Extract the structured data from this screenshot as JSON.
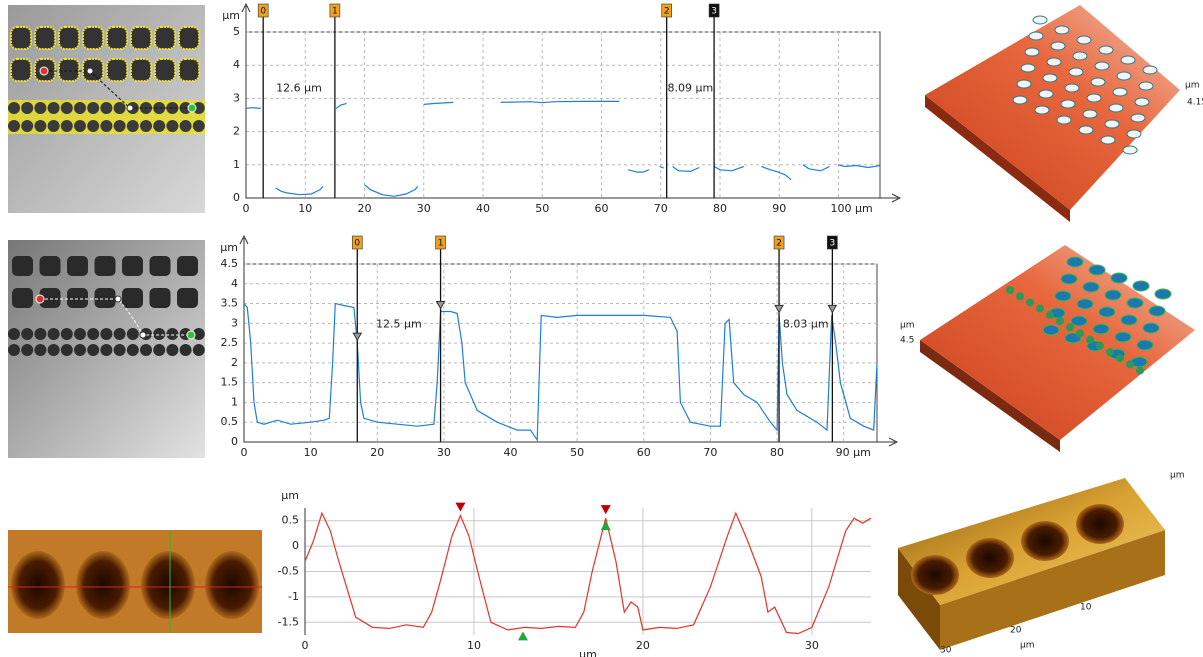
{
  "chart_data": [
    {
      "type": "line",
      "color": "#1f7fd6",
      "grid": "dashed",
      "y_label": "µm",
      "xlim": [
        0,
        107
      ],
      "xticks": [
        0,
        10,
        20,
        30,
        40,
        50,
        60,
        70,
        80,
        90,
        {
          "value": 100,
          "label": "100 µm"
        }
      ],
      "ylim": [
        0,
        5
      ],
      "yticks": [
        0,
        1,
        2,
        3,
        4,
        5
      ],
      "cursors": [
        {
          "label": "0",
          "x": 2.9,
          "color": "#f0a020"
        },
        {
          "label": "1",
          "x": 15,
          "color": "#f0a020"
        },
        {
          "label": "2",
          "x": 71,
          "color": "#f0a020"
        },
        {
          "label": "3",
          "x": 79,
          "color": "#111111"
        }
      ],
      "annotations": [
        "12.6 µm",
        "8.09 µm"
      ],
      "x": [
        0,
        1,
        2.5,
        3.5,
        5,
        6,
        7,
        9,
        11,
        12.5,
        13,
        14,
        15.2,
        16,
        17,
        18,
        20,
        21,
        23,
        25,
        27,
        28.5,
        29,
        29.5,
        30,
        32,
        35,
        38,
        43,
        48,
        50,
        52,
        57,
        63,
        64,
        64.5,
        66,
        67,
        68,
        69,
        69.8,
        70.5,
        71,
        72,
        73,
        75,
        76.5,
        77.5,
        79,
        80,
        82,
        84,
        85,
        87,
        88.5,
        89.5,
        91,
        92,
        93,
        94,
        95,
        97,
        98.5,
        99,
        100,
        101,
        103,
        105,
        107
      ],
      "values": [
        2.7,
        2.72,
        2.7,
        null,
        0.3,
        0.2,
        0.15,
        0.1,
        0.12,
        0.25,
        0.35,
        null,
        2.7,
        2.8,
        2.85,
        null,
        0.4,
        0.25,
        0.1,
        0.05,
        0.12,
        0.25,
        0.35,
        null,
        2.82,
        2.85,
        2.88,
        null,
        2.88,
        2.9,
        2.87,
        2.9,
        2.91,
        2.91,
        null,
        0.85,
        0.78,
        0.78,
        0.85,
        null,
        0.95,
        0.9,
        null,
        0.95,
        0.82,
        0.8,
        0.92,
        null,
        0.95,
        0.85,
        0.82,
        0.95,
        null,
        0.95,
        0.85,
        0.8,
        0.7,
        0.55,
        null,
        1.0,
        0.88,
        0.82,
        0.95,
        null,
        1.0,
        0.95,
        0.98,
        0.92,
        0.98
      ]
    },
    {
      "type": "line",
      "color": "#1f7fd6",
      "grid": "dashed",
      "y_label": "µm",
      "xlim": [
        0,
        95
      ],
      "xticks": [
        0,
        10,
        20,
        30,
        40,
        50,
        60,
        70,
        80,
        {
          "value": 90,
          "label": "90 µm"
        }
      ],
      "ylim": [
        0,
        4.5
      ],
      "yticks": [
        0,
        0.5,
        1,
        1.5,
        2,
        2.5,
        3,
        3.5,
        4,
        4.5
      ],
      "cursors": [
        {
          "label": "0",
          "x": 17,
          "color": "#f0a020"
        },
        {
          "label": "1",
          "x": 29.5,
          "color": "#f0a020"
        },
        {
          "label": "2",
          "x": 80.3,
          "color": "#f0a020"
        },
        {
          "label": "3",
          "x": 88.3,
          "color": "#111111"
        }
      ],
      "annotations": [
        "12.5 µm",
        "8.03 µm"
      ],
      "x": [
        0,
        0.5,
        1,
        1.5,
        2,
        3,
        5,
        7,
        10,
        12,
        12.8,
        13.3,
        13.7,
        15,
        16.5,
        17,
        17.5,
        18,
        20,
        23,
        26,
        28.5,
        29,
        29.5,
        31,
        32,
        32.7,
        33.2,
        35,
        38,
        41,
        43,
        44,
        44.6,
        47,
        50,
        55,
        60,
        64,
        65,
        65.5,
        67,
        70,
        71.5,
        72.2,
        72.8,
        73.5,
        75,
        77,
        79,
        80,
        80.3,
        80.8,
        81.5,
        83,
        86,
        87.5,
        88.2,
        88.8,
        89.5,
        91,
        93,
        94.5,
        95
      ],
      "values": [
        3.5,
        3.4,
        2.5,
        1.0,
        0.5,
        0.45,
        0.55,
        0.45,
        0.5,
        0.55,
        0.6,
        2.0,
        3.5,
        3.45,
        3.4,
        2.5,
        1.0,
        0.6,
        0.5,
        0.45,
        0.4,
        0.45,
        1.5,
        3.3,
        3.3,
        3.25,
        2.5,
        1.5,
        0.8,
        0.5,
        0.3,
        0.3,
        0.05,
        3.2,
        3.15,
        3.2,
        3.2,
        3.2,
        3.15,
        2.8,
        1.0,
        0.5,
        0.4,
        0.4,
        3.0,
        3.1,
        1.5,
        1.2,
        1.0,
        0.5,
        0.3,
        3.2,
        2.0,
        1.2,
        0.8,
        0.5,
        0.3,
        3.2,
        2.5,
        1.5,
        0.6,
        0.4,
        0.3,
        2.0
      ]
    },
    {
      "type": "line",
      "color": "#e8322a",
      "grid": "solid",
      "y_label": "µm",
      "x_label": "µm",
      "xlim": [
        0,
        33.5
      ],
      "xticks": [
        0,
        10,
        20,
        30
      ],
      "ylim": [
        -1.75,
        0.75
      ],
      "yticks": [
        -1.5,
        -1,
        -0.5,
        0,
        0.5
      ],
      "markers": [
        {
          "x": 9.2,
          "y": 0.6,
          "color": "#c00000",
          "direction": "down"
        },
        {
          "x": 17.8,
          "y": 0.55,
          "color": "#c00000",
          "direction": "down"
        },
        {
          "x": 12.9,
          "y": -1.62,
          "color": "#22a83a",
          "direction": "up"
        },
        {
          "x": 17.8,
          "y": 0.55,
          "color": "#22a83a",
          "direction": "up"
        }
      ],
      "x": [
        0,
        0.5,
        1,
        1.5,
        2,
        3,
        4,
        5,
        6,
        7,
        7.5,
        8,
        8.7,
        9.2,
        9.7,
        10.3,
        11,
        12,
        13,
        14,
        15,
        16,
        16.5,
        17,
        17.8,
        18.4,
        18.9,
        19.3,
        19.7,
        20,
        21,
        22,
        23,
        24,
        25,
        25.5,
        26.2,
        27,
        27.4,
        27.8,
        28.5,
        29.2,
        30,
        31,
        32,
        32.5,
        33,
        33.5
      ],
      "values": [
        -0.3,
        0.1,
        0.65,
        0.3,
        -0.3,
        -1.4,
        -1.6,
        -1.62,
        -1.55,
        -1.6,
        -1.3,
        -0.7,
        0.2,
        0.6,
        0.2,
        -0.6,
        -1.5,
        -1.65,
        -1.6,
        -1.62,
        -1.58,
        -1.6,
        -1.3,
        -0.5,
        0.55,
        -0.3,
        -1.3,
        -1.1,
        -1.2,
        -1.65,
        -1.6,
        -1.62,
        -1.55,
        -0.8,
        0.2,
        0.65,
        0.1,
        -0.6,
        -1.3,
        -1.2,
        -1.7,
        -1.72,
        -1.6,
        -0.8,
        0.3,
        0.55,
        0.45,
        0.55
      ]
    }
  ],
  "renders": [
    {
      "labels": [
        "µm",
        "4.15"
      ]
    },
    {
      "labels": [
        "µm",
        "4.5"
      ]
    },
    {
      "labels": [
        "µm",
        "30",
        "20",
        "10",
        "µm"
      ]
    }
  ]
}
